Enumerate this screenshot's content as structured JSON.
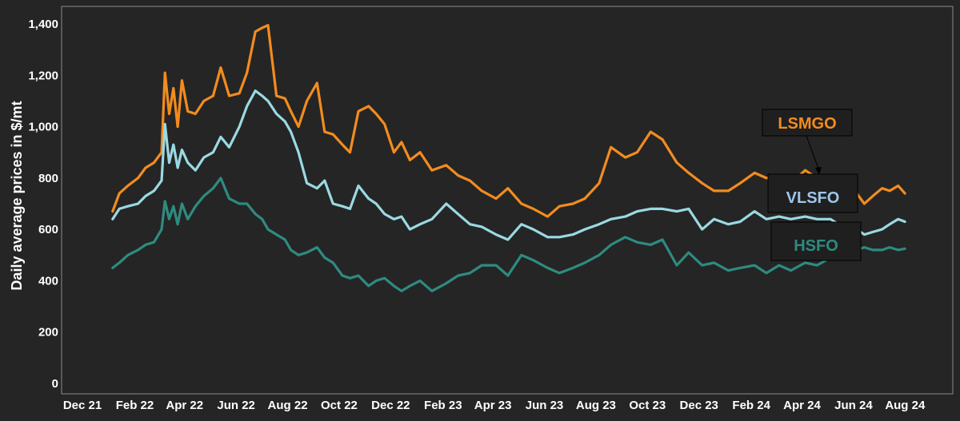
{
  "chart_data": {
    "type": "line",
    "title": "",
    "xlabel": "",
    "ylabel": "Daily average prices in $/mt",
    "ylim": [
      0,
      1400
    ],
    "yticks": [
      0,
      200,
      400,
      600,
      800,
      1000,
      1200,
      1400
    ],
    "ytick_labels": [
      "0",
      "200",
      "400",
      "600",
      "800",
      "1,000",
      "1,200",
      "1,400"
    ],
    "xlim": [
      "2021-12-01",
      "2024-08-31"
    ],
    "xticks": [
      "2021-12-01",
      "2022-02-01",
      "2022-04-01",
      "2022-06-01",
      "2022-08-01",
      "2022-10-01",
      "2022-12-01",
      "2023-02-01",
      "2023-04-01",
      "2023-06-01",
      "2023-08-01",
      "2023-10-01",
      "2023-12-01",
      "2024-02-01",
      "2024-04-01",
      "2024-06-01",
      "2024-08-01"
    ],
    "xtick_labels": [
      "Dec 21",
      "Feb 22",
      "Apr 22",
      "Jun 22",
      "Aug 22",
      "Oct 22",
      "Dec 22",
      "Feb 23",
      "Apr 23",
      "Jun 23",
      "Aug 23",
      "Oct 23",
      "Dec 23",
      "Feb 24",
      "Apr 24",
      "Jun 24",
      "Aug 24"
    ],
    "grid": false,
    "legend": "direct labels on right",
    "annotations": [
      {
        "text": "LSMGO",
        "series": "LSMGO",
        "arrow_to": {
          "x": "2024-03-20",
          "y": 810
        }
      }
    ],
    "series": [
      {
        "name": "LSMGO",
        "color": "#f28c1f",
        "x": [
          "2022-01-02",
          "2022-01-10",
          "2022-01-20",
          "2022-02-01",
          "2022-02-10",
          "2022-02-20",
          "2022-03-01",
          "2022-03-05",
          "2022-03-10",
          "2022-03-15",
          "2022-03-20",
          "2022-03-25",
          "2022-04-01",
          "2022-04-10",
          "2022-04-20",
          "2022-05-01",
          "2022-05-10",
          "2022-05-20",
          "2022-06-01",
          "2022-06-10",
          "2022-06-20",
          "2022-06-28",
          "2022-07-05",
          "2022-07-15",
          "2022-07-25",
          "2022-08-01",
          "2022-08-10",
          "2022-08-20",
          "2022-09-01",
          "2022-09-10",
          "2022-09-20",
          "2022-10-01",
          "2022-10-10",
          "2022-10-20",
          "2022-11-01",
          "2022-11-10",
          "2022-11-20",
          "2022-12-01",
          "2022-12-10",
          "2022-12-20",
          "2023-01-01",
          "2023-01-15",
          "2023-02-01",
          "2023-02-15",
          "2023-03-01",
          "2023-03-15",
          "2023-04-01",
          "2023-04-15",
          "2023-05-01",
          "2023-05-15",
          "2023-06-01",
          "2023-06-15",
          "2023-07-01",
          "2023-07-15",
          "2023-08-01",
          "2023-08-15",
          "2023-09-01",
          "2023-09-15",
          "2023-10-01",
          "2023-10-15",
          "2023-11-01",
          "2023-11-15",
          "2023-12-01",
          "2023-12-15",
          "2024-01-01",
          "2024-01-15",
          "2024-02-01",
          "2024-02-15",
          "2024-03-01",
          "2024-03-15",
          "2024-04-01",
          "2024-04-15",
          "2024-05-01",
          "2024-05-15",
          "2024-06-01",
          "2024-06-10",
          "2024-06-20",
          "2024-07-01",
          "2024-07-10",
          "2024-07-20",
          "2024-07-28"
        ],
        "y": [
          670,
          740,
          770,
          800,
          840,
          860,
          900,
          1210,
          1050,
          1150,
          1000,
          1180,
          1060,
          1050,
          1100,
          1120,
          1230,
          1120,
          1130,
          1210,
          1370,
          1385,
          1395,
          1120,
          1110,
          1060,
          1000,
          1100,
          1170,
          980,
          970,
          930,
          900,
          1060,
          1080,
          1050,
          1010,
          900,
          940,
          870,
          900,
          830,
          850,
          810,
          790,
          750,
          720,
          760,
          700,
          680,
          650,
          690,
          700,
          720,
          780,
          920,
          880,
          900,
          980,
          950,
          860,
          820,
          780,
          750,
          750,
          780,
          820,
          800,
          810,
          780,
          830,
          800,
          750,
          730,
          740,
          700,
          730,
          760,
          750,
          770,
          740
        ]
      },
      {
        "name": "VLSFO",
        "color": "#9ad9e2",
        "x": [
          "2022-01-02",
          "2022-01-10",
          "2022-01-20",
          "2022-02-01",
          "2022-02-10",
          "2022-02-20",
          "2022-03-01",
          "2022-03-05",
          "2022-03-10",
          "2022-03-15",
          "2022-03-20",
          "2022-03-25",
          "2022-04-01",
          "2022-04-10",
          "2022-04-20",
          "2022-05-01",
          "2022-05-10",
          "2022-05-20",
          "2022-06-01",
          "2022-06-10",
          "2022-06-20",
          "2022-06-28",
          "2022-07-05",
          "2022-07-15",
          "2022-07-25",
          "2022-08-01",
          "2022-08-10",
          "2022-08-20",
          "2022-09-01",
          "2022-09-10",
          "2022-09-20",
          "2022-10-01",
          "2022-10-10",
          "2022-10-20",
          "2022-11-01",
          "2022-11-10",
          "2022-11-20",
          "2022-12-01",
          "2022-12-10",
          "2022-12-20",
          "2023-01-01",
          "2023-01-15",
          "2023-02-01",
          "2023-02-15",
          "2023-03-01",
          "2023-03-15",
          "2023-04-01",
          "2023-04-15",
          "2023-05-01",
          "2023-05-15",
          "2023-06-01",
          "2023-06-15",
          "2023-07-01",
          "2023-07-15",
          "2023-08-01",
          "2023-08-15",
          "2023-09-01",
          "2023-09-15",
          "2023-10-01",
          "2023-10-15",
          "2023-11-01",
          "2023-11-15",
          "2023-12-01",
          "2023-12-15",
          "2024-01-01",
          "2024-01-15",
          "2024-02-01",
          "2024-02-15",
          "2024-03-01",
          "2024-03-15",
          "2024-04-01",
          "2024-04-15",
          "2024-05-01",
          "2024-05-15",
          "2024-06-01",
          "2024-06-10",
          "2024-06-20",
          "2024-07-01",
          "2024-07-10",
          "2024-07-20",
          "2024-07-28"
        ],
        "y": [
          640,
          680,
          690,
          700,
          730,
          750,
          790,
          1010,
          860,
          930,
          840,
          910,
          860,
          830,
          880,
          900,
          960,
          920,
          1000,
          1080,
          1140,
          1120,
          1100,
          1050,
          1020,
          980,
          900,
          780,
          760,
          790,
          700,
          690,
          680,
          770,
          720,
          700,
          660,
          640,
          650,
          600,
          620,
          640,
          700,
          660,
          620,
          610,
          580,
          560,
          620,
          600,
          570,
          570,
          580,
          600,
          620,
          640,
          650,
          670,
          680,
          680,
          670,
          680,
          600,
          640,
          620,
          630,
          670,
          640,
          650,
          640,
          650,
          640,
          640,
          610,
          600,
          580,
          590,
          600,
          620,
          640,
          630
        ]
      },
      {
        "name": "HSFO",
        "color": "#2e8b80",
        "x": [
          "2022-01-02",
          "2022-01-10",
          "2022-01-20",
          "2022-02-01",
          "2022-02-10",
          "2022-02-20",
          "2022-03-01",
          "2022-03-05",
          "2022-03-10",
          "2022-03-15",
          "2022-03-20",
          "2022-03-25",
          "2022-04-01",
          "2022-04-10",
          "2022-04-20",
          "2022-05-01",
          "2022-05-10",
          "2022-05-20",
          "2022-06-01",
          "2022-06-10",
          "2022-06-20",
          "2022-06-28",
          "2022-07-05",
          "2022-07-15",
          "2022-07-25",
          "2022-08-01",
          "2022-08-10",
          "2022-08-20",
          "2022-09-01",
          "2022-09-10",
          "2022-09-20",
          "2022-10-01",
          "2022-10-10",
          "2022-10-20",
          "2022-11-01",
          "2022-11-10",
          "2022-11-20",
          "2022-12-01",
          "2022-12-10",
          "2022-12-20",
          "2023-01-01",
          "2023-01-15",
          "2023-02-01",
          "2023-02-15",
          "2023-03-01",
          "2023-03-15",
          "2023-04-01",
          "2023-04-15",
          "2023-05-01",
          "2023-05-15",
          "2023-06-01",
          "2023-06-15",
          "2023-07-01",
          "2023-07-15",
          "2023-08-01",
          "2023-08-15",
          "2023-09-01",
          "2023-09-15",
          "2023-10-01",
          "2023-10-15",
          "2023-11-01",
          "2023-11-15",
          "2023-12-01",
          "2023-12-15",
          "2024-01-01",
          "2024-01-15",
          "2024-02-01",
          "2024-02-15",
          "2024-03-01",
          "2024-03-15",
          "2024-04-01",
          "2024-04-15",
          "2024-05-01",
          "2024-05-15",
          "2024-06-01",
          "2024-06-10",
          "2024-06-20",
          "2024-07-01",
          "2024-07-10",
          "2024-07-20",
          "2024-07-28"
        ],
        "y": [
          450,
          470,
          500,
          520,
          540,
          550,
          600,
          710,
          640,
          690,
          620,
          700,
          640,
          690,
          730,
          760,
          800,
          720,
          700,
          700,
          660,
          640,
          600,
          580,
          560,
          520,
          500,
          510,
          530,
          490,
          470,
          420,
          410,
          420,
          380,
          400,
          410,
          380,
          360,
          380,
          400,
          360,
          390,
          420,
          430,
          460,
          460,
          420,
          500,
          480,
          450,
          430,
          450,
          470,
          500,
          540,
          570,
          550,
          540,
          560,
          460,
          510,
          460,
          470,
          440,
          450,
          460,
          430,
          460,
          440,
          470,
          460,
          490,
          510,
          520,
          530,
          520,
          520,
          530,
          520,
          525
        ]
      }
    ]
  }
}
